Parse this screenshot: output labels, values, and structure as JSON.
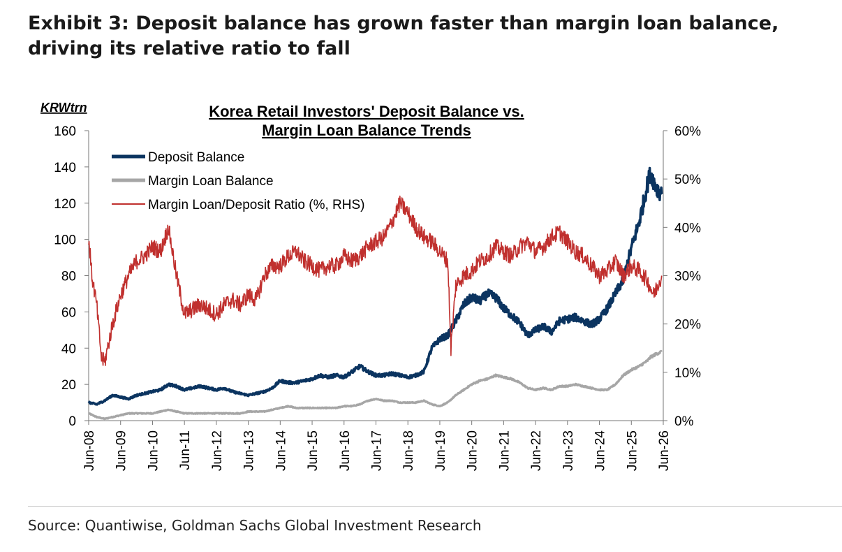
{
  "header": {
    "exhibit_title": "Exhibit 3: Deposit balance has grown faster than margin loan balance, driving its relative ratio to fall"
  },
  "footer": {
    "source": "Source: Quantiwise, Goldman Sachs Global Investment Research"
  },
  "chart_data": {
    "type": "line",
    "title_line1": "Korea Retail Investors' Deposit Balance vs.",
    "title_line2": "Margin Loan Balance Trends",
    "ylabel_left": "KRWtrn",
    "ylim_left": [
      0,
      160
    ],
    "ylim_right": [
      0,
      60
    ],
    "yticks_left": [
      "0",
      "20",
      "40",
      "60",
      "80",
      "100",
      "120",
      "140",
      "160"
    ],
    "yticks_right": [
      "0%",
      "10%",
      "20%",
      "30%",
      "40%",
      "50%",
      "60%"
    ],
    "xticks": [
      "Jun-08",
      "Jun-09",
      "Jun-10",
      "Jun-11",
      "Jun-12",
      "Jun-13",
      "Jun-14",
      "Jun-15",
      "Jun-16",
      "Jun-17",
      "Jun-18",
      "Jun-19",
      "Jun-20",
      "Jun-21",
      "Jun-22",
      "Jun-23",
      "Jun-24",
      "Jun-25",
      "Jun-26"
    ],
    "xlim": [
      2008.5,
      2026.5
    ],
    "grid": false,
    "legend_position": "top-left",
    "colors": {
      "deposit": "#0b3460",
      "margin": "#a6a6a6",
      "ratio": "#c0302e"
    },
    "series": [
      {
        "name": "Deposit Balance",
        "axis": "left",
        "x": [
          2008.5,
          2008.75,
          2009.0,
          2009.25,
          2009.5,
          2009.75,
          2010.0,
          2010.25,
          2010.5,
          2010.75,
          2011.0,
          2011.25,
          2011.5,
          2011.75,
          2012.0,
          2012.25,
          2012.5,
          2012.75,
          2013.0,
          2013.25,
          2013.5,
          2013.75,
          2014.0,
          2014.25,
          2014.5,
          2014.75,
          2015.0,
          2015.25,
          2015.5,
          2015.75,
          2016.0,
          2016.25,
          2016.5,
          2016.75,
          2017.0,
          2017.25,
          2017.5,
          2017.75,
          2018.0,
          2018.25,
          2018.5,
          2018.75,
          2019.0,
          2019.25,
          2019.5,
          2019.75,
          2020.0,
          2020.25,
          2020.5,
          2020.75,
          2021.0,
          2021.25,
          2021.5,
          2021.75,
          2022.0,
          2022.25,
          2022.5,
          2022.75,
          2023.0,
          2023.25,
          2023.5,
          2023.75,
          2024.0,
          2024.25,
          2024.5,
          2024.75,
          2025.0,
          2025.25,
          2025.5,
          2025.75,
          2026.0,
          2026.1,
          2026.2,
          2026.3,
          2026.45
        ],
        "values": [
          10,
          9,
          11,
          14,
          13,
          12,
          14,
          15,
          16,
          17,
          20,
          19,
          17,
          18,
          19,
          18,
          17,
          18,
          16,
          15,
          14,
          15,
          16,
          18,
          22,
          21,
          21,
          22,
          23,
          25,
          24,
          25,
          24,
          27,
          30,
          27,
          25,
          25,
          26,
          25,
          24,
          25,
          27,
          40,
          45,
          47,
          55,
          64,
          68,
          66,
          70,
          68,
          62,
          58,
          54,
          47,
          50,
          52,
          49,
          55,
          56,
          57,
          55,
          53,
          56,
          62,
          70,
          78,
          95,
          110,
          130,
          137,
          132,
          128,
          125
        ]
      },
      {
        "name": "Margin Loan Balance",
        "axis": "left",
        "x": [
          2008.5,
          2008.75,
          2009.0,
          2009.25,
          2009.5,
          2009.75,
          2010.0,
          2010.25,
          2010.5,
          2010.75,
          2011.0,
          2011.25,
          2011.5,
          2011.75,
          2012.0,
          2012.25,
          2012.5,
          2012.75,
          2013.0,
          2013.25,
          2013.5,
          2013.75,
          2014.0,
          2014.25,
          2014.5,
          2014.75,
          2015.0,
          2015.25,
          2015.5,
          2015.75,
          2016.0,
          2016.25,
          2016.5,
          2016.75,
          2017.0,
          2017.25,
          2017.5,
          2017.75,
          2018.0,
          2018.25,
          2018.5,
          2018.75,
          2019.0,
          2019.25,
          2019.5,
          2019.75,
          2020.0,
          2020.25,
          2020.5,
          2020.75,
          2021.0,
          2021.25,
          2021.5,
          2021.75,
          2022.0,
          2022.25,
          2022.5,
          2022.75,
          2023.0,
          2023.25,
          2023.5,
          2023.75,
          2024.0,
          2024.25,
          2024.5,
          2024.75,
          2025.0,
          2025.25,
          2025.5,
          2025.75,
          2026.0,
          2026.1,
          2026.2,
          2026.3,
          2026.45
        ],
        "values": [
          4,
          2,
          1,
          2,
          3,
          4,
          4,
          4,
          4,
          5,
          6,
          5,
          4,
          4,
          4,
          4,
          4,
          4,
          4,
          4,
          5,
          5,
          5,
          6,
          7,
          8,
          7,
          7,
          7,
          7,
          7,
          7,
          8,
          8,
          9,
          11,
          12,
          11,
          11,
          10,
          10,
          10,
          11,
          9,
          8,
          10,
          14,
          17,
          20,
          22,
          23,
          25,
          24,
          23,
          21,
          18,
          17,
          18,
          17,
          19,
          19,
          20,
          19,
          18,
          17,
          17,
          20,
          25,
          28,
          30,
          33,
          35,
          36,
          37,
          38
        ]
      },
      {
        "name": "Margin Loan/Deposit Ratio (%, RHS)",
        "axis": "right",
        "x": [
          2008.5,
          2008.6,
          2008.75,
          2008.9,
          2009.0,
          2009.25,
          2009.5,
          2009.75,
          2010.0,
          2010.25,
          2010.5,
          2010.75,
          2011.0,
          2011.1,
          2011.25,
          2011.5,
          2011.75,
          2012.0,
          2012.25,
          2012.5,
          2012.75,
          2013.0,
          2013.25,
          2013.5,
          2013.75,
          2014.0,
          2014.25,
          2014.5,
          2014.75,
          2015.0,
          2015.25,
          2015.5,
          2015.75,
          2016.0,
          2016.25,
          2016.5,
          2016.75,
          2017.0,
          2017.25,
          2017.5,
          2017.75,
          2018.0,
          2018.25,
          2018.5,
          2018.75,
          2019.0,
          2019.25,
          2019.5,
          2019.75,
          2019.85,
          2020.0,
          2020.25,
          2020.5,
          2020.75,
          2021.0,
          2021.25,
          2021.5,
          2021.75,
          2022.0,
          2022.25,
          2022.5,
          2022.75,
          2023.0,
          2023.25,
          2023.5,
          2023.75,
          2024.0,
          2024.25,
          2024.5,
          2024.75,
          2025.0,
          2025.25,
          2025.5,
          2025.75,
          2026.0,
          2026.2,
          2026.45
        ],
        "values": [
          38,
          30,
          24,
          13,
          12,
          20,
          26,
          30,
          33,
          34,
          36,
          35,
          40,
          36,
          30,
          22,
          23,
          24,
          23,
          22,
          24,
          25,
          24,
          26,
          25,
          30,
          32,
          32,
          34,
          35,
          33,
          32,
          31,
          32,
          32,
          34,
          33,
          34,
          36,
          37,
          38,
          41,
          45,
          43,
          40,
          38,
          37,
          35,
          33,
          15,
          28,
          30,
          31,
          33,
          34,
          36,
          35,
          34,
          36,
          37,
          35,
          36,
          38,
          39,
          37,
          35,
          34,
          32,
          30,
          31,
          33,
          30,
          32,
          31,
          29,
          26,
          30
        ]
      }
    ]
  }
}
